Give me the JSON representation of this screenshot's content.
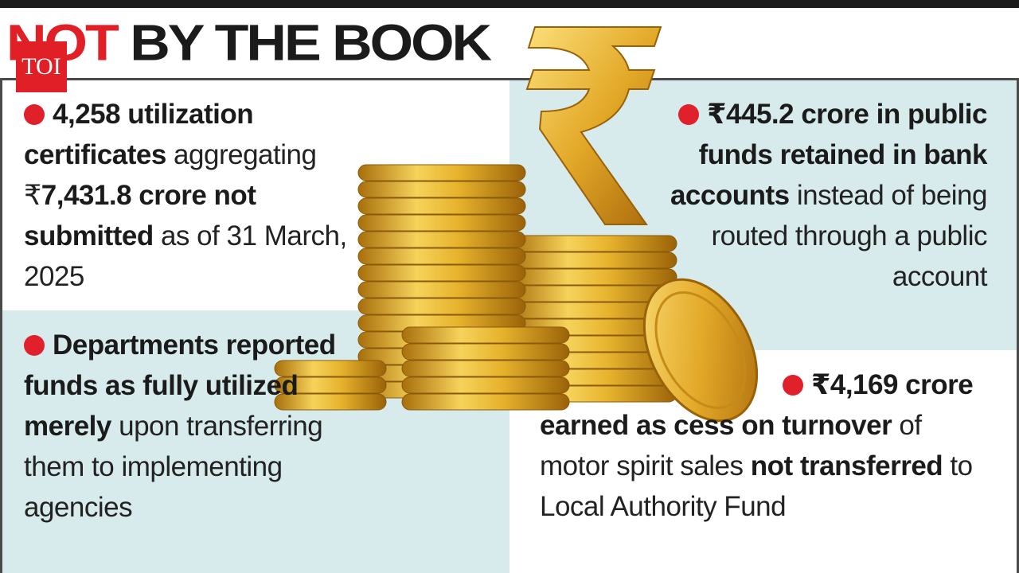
{
  "logo": "TOI",
  "header": {
    "highlight": "NOT",
    "title": "BY THE BOOK"
  },
  "points": [
    {
      "segments": [
        {
          "text": "4,258 utilization certificates",
          "bold": true
        },
        {
          "text": " aggregating ₹",
          "bold": false
        },
        {
          "text": "7,431.8 crore not submitted",
          "bold": true
        },
        {
          "text": " as of 31 March, 2025",
          "bold": false
        }
      ]
    },
    {
      "segments": [
        {
          "text": "Departments reported funds as fully utilized merely",
          "bold": true
        },
        {
          "text": " upon transferring them to implementing agencies",
          "bold": false
        }
      ]
    },
    {
      "segments": [
        {
          "text": "₹445.2 crore in public funds retained in bank accounts",
          "bold": true
        },
        {
          "text": " instead of being routed through a public account",
          "bold": false
        }
      ]
    },
    {
      "segments": [
        {
          "text": "₹4,169 crore earned as cess on turnover",
          "bold": true
        },
        {
          "text": " of motor spirit sales ",
          "bold": false
        },
        {
          "text": "not transferred",
          "bold": true
        },
        {
          "text": " to Local Authority Fund",
          "bold": false
        }
      ]
    }
  ]
}
